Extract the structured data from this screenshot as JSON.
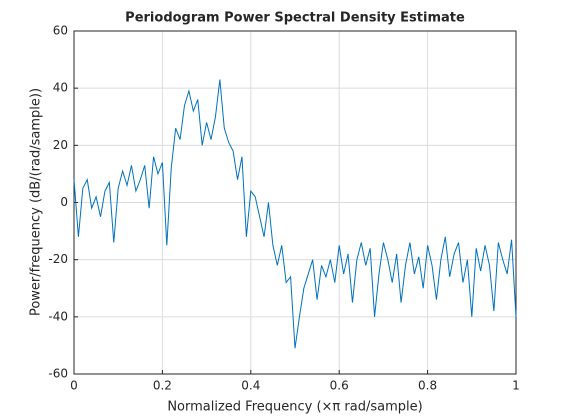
{
  "chart_data": {
    "type": "line",
    "title": "Periodogram Power Spectral Density Estimate",
    "xlabel": "Normalized Frequency  (×π rad/sample)",
    "ylabel": "Power/frequency (dB/(rad/sample))",
    "x": [
      0,
      0.01,
      0.02,
      0.03,
      0.04,
      0.05,
      0.06,
      0.07,
      0.08,
      0.09,
      0.1,
      0.11,
      0.12,
      0.13,
      0.14,
      0.15,
      0.16,
      0.17,
      0.18,
      0.19,
      0.2,
      0.21,
      0.22,
      0.23,
      0.24,
      0.25,
      0.26,
      0.27,
      0.28,
      0.29,
      0.3,
      0.31,
      0.32,
      0.33,
      0.34,
      0.35,
      0.36,
      0.37,
      0.38,
      0.39,
      0.4,
      0.41,
      0.42,
      0.43,
      0.44,
      0.45,
      0.46,
      0.47,
      0.48,
      0.49,
      0.5,
      0.51,
      0.52,
      0.53,
      0.54,
      0.55,
      0.56,
      0.57,
      0.58,
      0.59,
      0.6,
      0.61,
      0.62,
      0.63,
      0.64,
      0.65,
      0.66,
      0.67,
      0.68,
      0.69,
      0.7,
      0.71,
      0.72,
      0.73,
      0.74,
      0.75,
      0.76,
      0.77,
      0.78,
      0.79,
      0.8,
      0.81,
      0.82,
      0.83,
      0.84,
      0.85,
      0.86,
      0.87,
      0.88,
      0.89,
      0.9,
      0.91,
      0.92,
      0.93,
      0.94,
      0.95,
      0.96,
      0.97,
      0.98,
      0.99,
      1
    ],
    "series": [
      {
        "color": "#0072bd",
        "values": [
          8,
          -12,
          5,
          8,
          -2,
          2,
          -5,
          4,
          7,
          -14,
          5,
          11,
          6,
          13,
          4,
          8,
          13,
          -2,
          16,
          10,
          14,
          -15,
          12,
          26,
          22,
          34,
          39,
          32,
          36,
          20,
          28,
          22,
          30,
          43,
          26,
          21,
          18,
          8,
          16,
          -12,
          4,
          2,
          -5,
          -12,
          0,
          -15,
          -22,
          -15,
          -28,
          -26,
          -51,
          -40,
          -30,
          -25,
          -20,
          -34,
          -22,
          -26,
          -20,
          -28,
          -15,
          -25,
          -18,
          -35,
          -20,
          -14,
          -22,
          -16,
          -40,
          -25,
          -14,
          -20,
          -28,
          -18,
          -35,
          -22,
          -14,
          -25,
          -19,
          -30,
          -15,
          -22,
          -34,
          -20,
          -12,
          -26,
          -18,
          -14,
          -28,
          -20,
          -40,
          -16,
          -24,
          -15,
          -22,
          -38,
          -14,
          -20,
          -25,
          -13,
          -40
        ]
      }
    ],
    "xlim": [
      0,
      1
    ],
    "ylim": [
      -60,
      60
    ],
    "xticks": [
      0,
      0.2,
      0.4,
      0.6,
      0.8,
      1
    ],
    "yticks": [
      -60,
      -40,
      -20,
      0,
      20,
      40,
      60
    ],
    "grid": true
  }
}
